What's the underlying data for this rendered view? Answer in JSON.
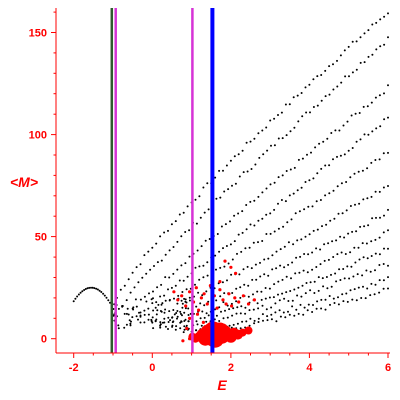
{
  "chart_data": {
    "type": "scatter",
    "xlabel": "E",
    "ylabel": "<M>",
    "xlim": [
      -2.45,
      6.05
    ],
    "ylim": [
      -7,
      162
    ],
    "x_ticks": [
      -2,
      0,
      2,
      4,
      6
    ],
    "x_tick_labels": [
      "-2",
      "0",
      "2",
      "4",
      "6"
    ],
    "y_ticks": [
      0,
      50,
      100,
      150
    ],
    "y_tick_labels": [
      "0",
      "50",
      "100",
      "150"
    ],
    "grid": false,
    "axis_color": "#ff0000",
    "vertical_lines": [
      {
        "x": -1.03,
        "color": "#2f5a2f"
      },
      {
        "x": -0.93,
        "color": "#d633d6"
      },
      {
        "x": 1.02,
        "color": "#d633d6"
      },
      {
        "x": 1.53,
        "color": "#0000ff"
      }
    ],
    "series": [
      {
        "marker_color": "#000000",
        "marker": "dot",
        "curves": [
          {
            "x0": -0.9,
            "y0": 20,
            "x1": 6.0,
            "y1": 160,
            "p": 0.85,
            "n": 70
          },
          {
            "x0": -0.85,
            "y0": 14,
            "x1": 6.0,
            "y1": 147,
            "p": 0.9,
            "n": 70
          },
          {
            "x0": -0.6,
            "y0": 12,
            "x1": 6.0,
            "y1": 123,
            "p": 0.95,
            "n": 65
          },
          {
            "x0": -0.4,
            "y0": 11,
            "x1": 6.0,
            "y1": 108,
            "p": 1.0,
            "n": 65
          },
          {
            "x0": -0.3,
            "y0": 10,
            "x1": 6.0,
            "y1": 92,
            "p": 1.05,
            "n": 60
          },
          {
            "x0": -0.2,
            "y0": 9,
            "x1": 6.0,
            "y1": 75,
            "p": 1.1,
            "n": 60
          },
          {
            "x0": 0.0,
            "y0": 8,
            "x1": 6.0,
            "y1": 62,
            "p": 1.15,
            "n": 60
          },
          {
            "x0": 0.2,
            "y0": 7,
            "x1": 6.0,
            "y1": 52,
            "p": 1.2,
            "n": 55
          },
          {
            "x0": 0.4,
            "y0": 6,
            "x1": 6.0,
            "y1": 44,
            "p": 1.25,
            "n": 55
          },
          {
            "x0": 0.6,
            "y0": 5,
            "x1": 6.0,
            "y1": 37,
            "p": 1.3,
            "n": 50
          },
          {
            "x0": 0.8,
            "y0": 4,
            "x1": 6.0,
            "y1": 29,
            "p": 1.35,
            "n": 50
          },
          {
            "x0": 1.0,
            "y0": 3,
            "x1": 6.0,
            "y1": 24,
            "p": 1.4,
            "n": 45
          }
        ],
        "branch": {
          "x0": -2.0,
          "x1": -0.9,
          "ypeak": 25,
          "xpeak": -1.55,
          "n": 26
        },
        "cloud": {
          "xmin": -1.0,
          "xmax": 1.0,
          "ymin": 5,
          "ymax": 20,
          "n": 70,
          "seed": 7
        }
      },
      {
        "marker_color": "#ff0000",
        "marker": "disc",
        "points": [
          [
            1.02,
            1,
            4
          ],
          [
            1.1,
            0,
            4
          ],
          [
            1.2,
            1,
            5
          ],
          [
            1.28,
            2,
            6
          ],
          [
            1.35,
            0,
            7
          ],
          [
            1.42,
            3,
            8
          ],
          [
            1.5,
            1,
            9
          ],
          [
            1.55,
            4,
            9
          ],
          [
            1.6,
            0,
            9
          ],
          [
            1.66,
            2,
            8
          ],
          [
            1.72,
            4,
            8
          ],
          [
            1.78,
            1,
            7
          ],
          [
            1.85,
            3,
            7
          ],
          [
            1.92,
            2,
            6
          ],
          [
            2.0,
            1,
            6
          ],
          [
            2.08,
            3,
            5
          ],
          [
            2.18,
            2,
            5
          ],
          [
            2.3,
            3,
            4
          ],
          [
            2.45,
            4,
            4
          ],
          [
            1.62,
            5,
            6
          ],
          [
            1.45,
            5,
            5
          ],
          [
            1.8,
            5,
            5
          ]
        ],
        "small_points": [
          [
            0.55,
            23
          ],
          [
            0.65,
            19
          ],
          [
            0.75,
            21
          ],
          [
            0.85,
            16
          ],
          [
            0.95,
            23
          ],
          [
            1.05,
            18
          ],
          [
            1.12,
            25
          ],
          [
            1.18,
            14
          ],
          [
            1.25,
            20
          ],
          [
            1.32,
            22
          ],
          [
            1.4,
            17
          ],
          [
            1.48,
            26
          ],
          [
            1.58,
            21
          ],
          [
            1.65,
            15
          ],
          [
            1.72,
            24
          ],
          [
            1.8,
            19
          ],
          [
            1.88,
            17
          ],
          [
            1.95,
            22
          ],
          [
            2.02,
            16
          ],
          [
            2.1,
            20
          ],
          [
            2.2,
            18
          ],
          [
            2.32,
            21
          ],
          [
            2.45,
            17
          ],
          [
            2.6,
            19
          ],
          [
            1.85,
            38
          ],
          [
            2.0,
            35
          ],
          [
            2.12,
            32
          ],
          [
            1.72,
            28
          ],
          [
            0.95,
            10
          ],
          [
            1.3,
            8
          ],
          [
            0.88,
            5
          ],
          [
            1.15,
            12
          ],
          [
            0.95,
            0
          ],
          [
            0.78,
            -1
          ]
        ]
      }
    ]
  }
}
